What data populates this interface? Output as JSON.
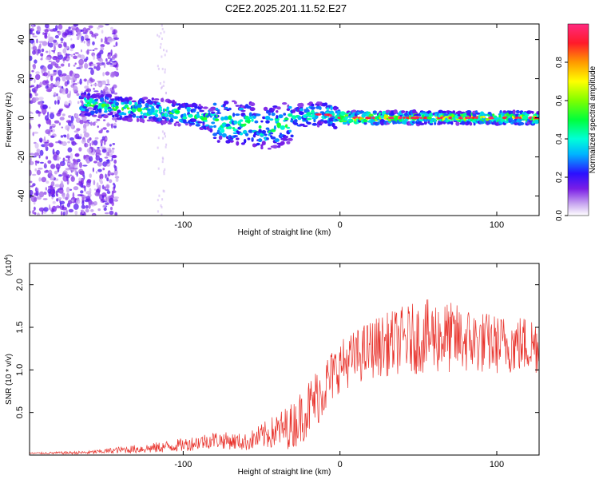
{
  "page": {
    "title": "C2E2.2025.201.11.52.E27"
  },
  "chart_data": [
    {
      "type": "heatmap",
      "xlabel": "Height of straight line (km)",
      "ylabel": "Frequency (Hz)",
      "xlim": [
        -198,
        127
      ],
      "ylim": [
        -50,
        48
      ],
      "x_ticks": [
        -100,
        0,
        100
      ],
      "x_tick_labels": [
        "-100",
        "0",
        "100"
      ],
      "y_ticks": [
        -40,
        -20,
        0,
        20,
        40
      ],
      "y_tick_labels": [
        "-40",
        "-20",
        "0",
        "20",
        "40"
      ],
      "colorbar": {
        "label": "Normalized spectral amplitude",
        "range": [
          0,
          1
        ],
        "ticks": [
          0.0,
          0.2,
          0.4,
          0.6,
          0.8
        ],
        "tick_labels": [
          "0.0",
          "0.2",
          "0.4",
          "0.6",
          "0.8"
        ]
      },
      "ridge_centerline": {
        "x": [
          -160,
          -140,
          -120,
          -100,
          -80,
          -60,
          -45,
          -35,
          -25,
          -10,
          0,
          40,
          80,
          127
        ],
        "y": [
          7,
          5,
          4,
          2,
          -1,
          -3,
          -5,
          -3,
          1,
          2,
          0,
          0,
          0,
          0
        ]
      },
      "noise_region": {
        "x_range": [
          -198,
          -150
        ],
        "note_amplitude": 0.3
      },
      "grid": false
    },
    {
      "type": "line",
      "xlabel": "Height of straight line (km)",
      "ylabel": "SNR (10 * v/v)",
      "y_multiplier_label": "(x10",
      "y_multiplier_exp": "4",
      "y_multiplier_close": ")",
      "xlim": [
        -198,
        127
      ],
      "ylim": [
        0,
        2.25
      ],
      "x_ticks": [
        -100,
        0,
        100
      ],
      "x_tick_labels": [
        "-100",
        "0",
        "100"
      ],
      "y_ticks": [
        0.5,
        1.0,
        1.5,
        2.0
      ],
      "y_tick_labels": [
        "0.5",
        "1.0",
        "1.5",
        "2.0"
      ],
      "series": [
        {
          "color": "#e8312a",
          "envelope": {
            "x": [
              -198,
              -160,
              -140,
              -120,
              -100,
              -80,
              -60,
              -45,
              -30,
              -20,
              -10,
              0,
              20,
              40,
              60,
              80,
              100,
              127
            ],
            "mean": [
              0.02,
              0.03,
              0.06,
              0.08,
              0.12,
              0.18,
              0.15,
              0.25,
              0.35,
              0.55,
              0.8,
              1.05,
              1.25,
              1.35,
              1.4,
              1.35,
              1.3,
              1.3
            ],
            "amp": [
              0.01,
              0.02,
              0.04,
              0.06,
              0.08,
              0.1,
              0.1,
              0.18,
              0.28,
              0.35,
              0.35,
              0.3,
              0.35,
              0.4,
              0.45,
              0.4,
              0.35,
              0.35
            ]
          }
        }
      ],
      "grid": false
    }
  ]
}
